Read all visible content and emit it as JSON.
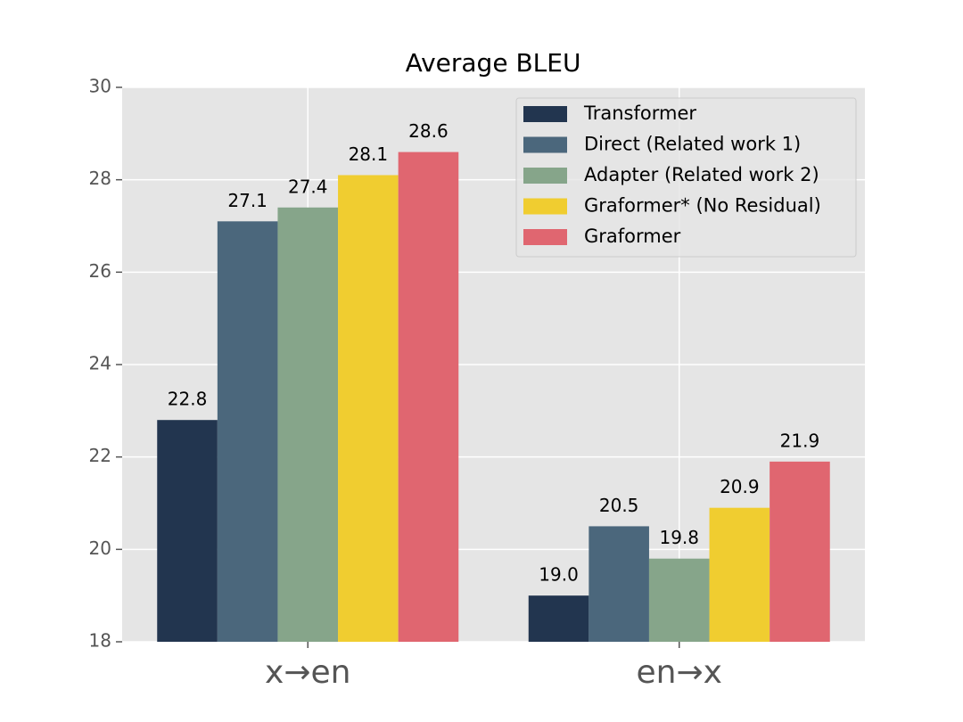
{
  "chart_data": {
    "type": "bar",
    "title": "Average BLEU",
    "categories": [
      "x→en",
      "en→x"
    ],
    "series": [
      {
        "name": "Transformer",
        "color": "#22354f",
        "values": [
          22.8,
          19.0
        ],
        "value_labels": [
          "22.8",
          "19.0"
        ]
      },
      {
        "name": "Direct (Related work 1)",
        "color": "#4b677c",
        "values": [
          27.1,
          20.5
        ],
        "value_labels": [
          "27.1",
          "20.5"
        ]
      },
      {
        "name": "Adapter (Related work 2)",
        "color": "#86a58a",
        "values": [
          27.4,
          19.8
        ],
        "value_labels": [
          "27.4",
          "19.8"
        ]
      },
      {
        "name": "Graformer* (No Residual)",
        "color": "#f0cd30",
        "values": [
          28.1,
          20.9
        ],
        "value_labels": [
          "28.1",
          "20.9"
        ]
      },
      {
        "name": "Graformer",
        "color": "#e06670",
        "values": [
          28.6,
          21.9
        ],
        "value_labels": [
          "28.6",
          "21.9"
        ]
      }
    ],
    "ylim": [
      18,
      30
    ],
    "yticks": [
      18,
      20,
      22,
      24,
      26,
      28,
      30
    ],
    "grid": true,
    "legend": "upper right"
  }
}
